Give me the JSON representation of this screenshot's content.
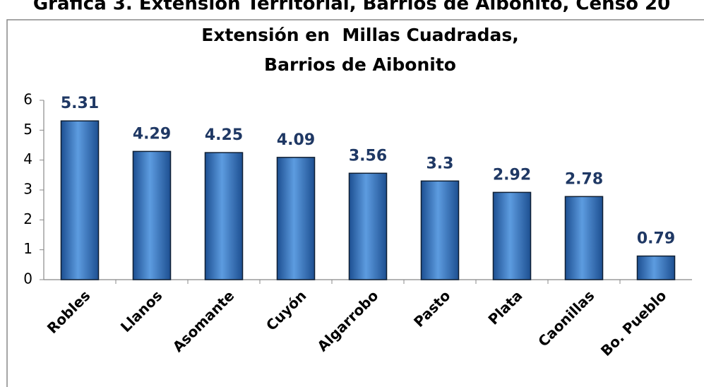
{
  "heading": "Gráfica 3. Extensión Territorial, Barrios de Aibonito, Censo 20",
  "chart_data": {
    "type": "bar",
    "title": [
      "Extensión en  Millas Cuadradas,",
      "Barrios de Aibonito"
    ],
    "categories": [
      "Robles",
      "Llanos",
      "Asomante",
      "Cuyón",
      "Algarrobo",
      "Pasto",
      "Plata",
      "Caonillas",
      "Bo. Pueblo"
    ],
    "values": [
      5.31,
      4.29,
      4.25,
      4.09,
      3.56,
      3.3,
      2.92,
      2.78,
      0.79
    ],
    "color": "#2f6db5",
    "ylim": [
      0,
      6
    ],
    "yticks": [
      0,
      1,
      2,
      3,
      4,
      5,
      6
    ],
    "grid": false
  }
}
